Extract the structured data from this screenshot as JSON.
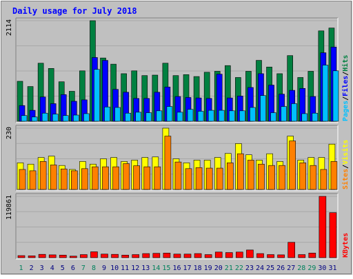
{
  "title": "Daily usage for July 2018",
  "colors": {
    "background": "#c0c0c0",
    "hits": "#008040",
    "files": "#0000ff",
    "pages": "#00c0ff",
    "visits": "#ffff00",
    "sites": "#ff8000",
    "kbytes": "#ff0000",
    "weekend_label": "#00805c",
    "weekday_label": "#000080",
    "title_color": "#0000ff"
  },
  "chart_data": [
    {
      "type": "bar",
      "panel": "top",
      "max_label": "2114",
      "ylim": [
        0,
        2114
      ],
      "legend_right": [
        "Pages",
        "/",
        "Files",
        "/",
        "Hits"
      ],
      "categories": [
        "1",
        "2",
        "3",
        "4",
        "5",
        "6",
        "7",
        "8",
        "9",
        "10",
        "11",
        "12",
        "13",
        "14",
        "15",
        "16",
        "17",
        "18",
        "19",
        "20",
        "21",
        "22",
        "23",
        "24",
        "25",
        "26",
        "27",
        "28",
        "29",
        "30",
        "31"
      ],
      "series": [
        {
          "name": "Hits",
          "values": [
            840,
            730,
            1220,
            1110,
            830,
            630,
            1060,
            2114,
            1330,
            1200,
            1000,
            1060,
            960,
            970,
            1220,
            960,
            980,
            940,
            1030,
            1050,
            1170,
            920,
            1050,
            1280,
            1140,
            1000,
            1380,
            920,
            1050,
            1900,
            1960
          ]
        },
        {
          "name": "Files",
          "values": [
            330,
            230,
            510,
            370,
            560,
            420,
            450,
            1340,
            1280,
            670,
            610,
            480,
            480,
            610,
            720,
            520,
            500,
            490,
            480,
            990,
            490,
            530,
            710,
            1000,
            760,
            570,
            650,
            690,
            520,
            1440,
            1560
          ]
        },
        {
          "name": "Pages",
          "values": [
            120,
            90,
            170,
            150,
            120,
            130,
            160,
            1090,
            300,
            290,
            170,
            190,
            180,
            220,
            310,
            190,
            250,
            210,
            230,
            230,
            220,
            220,
            290,
            540,
            180,
            310,
            370,
            160,
            170,
            1180,
            1060
          ]
        }
      ]
    },
    {
      "type": "bar",
      "panel": "middle",
      "max_label": "230",
      "ylim": [
        0,
        230
      ],
      "legend_right": [
        "Sites",
        "/",
        "Visits"
      ],
      "categories": [
        "1",
        "2",
        "3",
        "4",
        "5",
        "6",
        "7",
        "8",
        "9",
        "10",
        "11",
        "12",
        "13",
        "14",
        "15",
        "16",
        "17",
        "18",
        "19",
        "20",
        "21",
        "22",
        "23",
        "24",
        "25",
        "26",
        "27",
        "28",
        "29",
        "30",
        "31"
      ],
      "series": [
        {
          "name": "Visits",
          "values": [
            100,
            95,
            120,
            125,
            90,
            75,
            105,
            95,
            115,
            120,
            105,
            110,
            120,
            122,
            230,
            115,
            100,
            110,
            110,
            120,
            135,
            172,
            130,
            110,
            134,
            105,
            200,
            110,
            120,
            120,
            170
          ]
        },
        {
          "name": "Sites",
          "values": [
            75,
            70,
            105,
            92,
            77,
            70,
            78,
            85,
            85,
            85,
            97,
            89,
            85,
            85,
            200,
            103,
            78,
            82,
            80,
            80,
            100,
            134,
            110,
            95,
            90,
            90,
            182,
            100,
            90,
            75,
            105
          ]
        }
      ]
    },
    {
      "type": "bar",
      "panel": "bottom",
      "max_label": "119861",
      "ylim": [
        0,
        119861
      ],
      "legend_right": [
        "KBytes"
      ],
      "categories": [
        "1",
        "2",
        "3",
        "4",
        "5",
        "6",
        "7",
        "8",
        "9",
        "10",
        "11",
        "12",
        "13",
        "14",
        "15",
        "16",
        "17",
        "18",
        "19",
        "20",
        "21",
        "22",
        "23",
        "24",
        "25",
        "26",
        "27",
        "28",
        "29",
        "30",
        "31"
      ],
      "series": [
        {
          "name": "KBytes",
          "values": [
            4000,
            3500,
            6500,
            5500,
            5000,
            3000,
            6000,
            11500,
            7000,
            6500,
            5000,
            6000,
            8000,
            8500,
            9000,
            7000,
            7000,
            8000,
            6000,
            11000,
            10000,
            11000,
            15000,
            8000,
            6000,
            5500,
            30000,
            6000,
            9000,
            119861,
            88000
          ]
        }
      ]
    }
  ]
}
